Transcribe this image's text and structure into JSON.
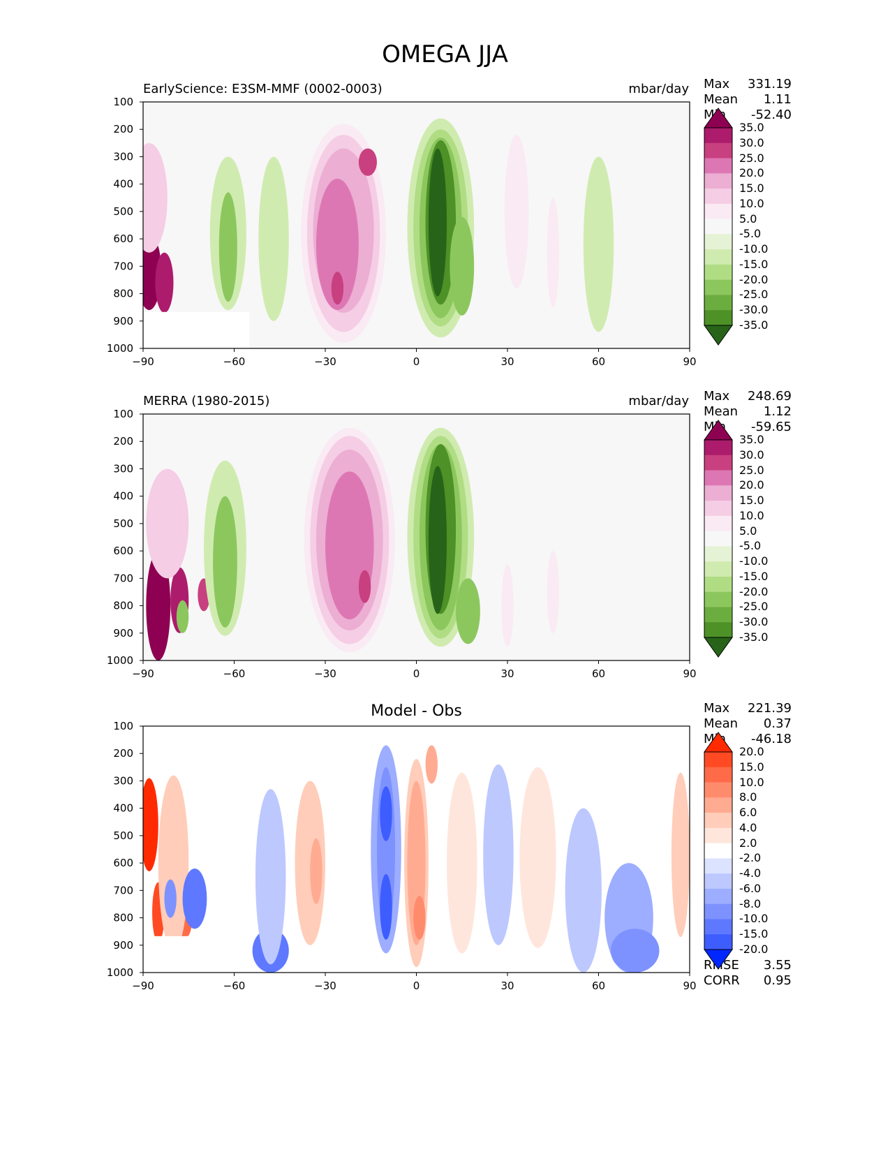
{
  "figure": {
    "title": "OMEGA JJA"
  },
  "chart_data": [
    {
      "type": "heatmap",
      "name": "test",
      "title_left": "EarlyScience: E3SM-MMF (0002-0003)",
      "title_right": "mbar/day",
      "xlim": [
        -90,
        90
      ],
      "ylim": [
        1000,
        100
      ],
      "x_ticks": [
        "−90",
        "−60",
        "−30",
        "0",
        "30",
        "60",
        "90"
      ],
      "y_ticks": [
        "100",
        "200",
        "300",
        "400",
        "500",
        "600",
        "700",
        "800",
        "900",
        "1000"
      ],
      "stats": {
        "max_label": "Max",
        "max": "331.19",
        "mean_label": "Mean",
        "mean": "1.11",
        "min_label": "Min",
        "min": "-52.40"
      },
      "colorbar": {
        "levels": [
          "35.0",
          "30.0",
          "25.0",
          "20.0",
          "15.0",
          "10.0",
          "5.0",
          "-5.0",
          "-10.0",
          "-15.0",
          "-20.0",
          "-25.0",
          "-30.0",
          "-35.0"
        ],
        "colors": [
          "#8e0152",
          "#ad1b6c",
          "#c8407f",
          "#dd77b3",
          "#ecaed3",
          "#f5cde5",
          "#faeaf3",
          "#f7f7f7",
          "#e6f2d5",
          "#d0ebb0",
          "#b0dd84",
          "#8cc75e",
          "#6cad40",
          "#4d9127",
          "#2f6e1c",
          "#276419"
        ]
      },
      "blobs": [
        {
          "lat": -88,
          "p": 720,
          "rx": 4,
          "ry": 140,
          "level": 35
        },
        {
          "lat": -83,
          "p": 760,
          "rx": 3,
          "ry": 110,
          "level": 30
        },
        {
          "lat": -88,
          "p": 450,
          "rx": 6,
          "ry": 200,
          "level": 10
        },
        {
          "lat": -62,
          "p": 580,
          "rx": 6,
          "ry": 280,
          "level": -5
        },
        {
          "lat": -62,
          "p": 630,
          "rx": 3,
          "ry": 200,
          "level": -15
        },
        {
          "lat": -47,
          "p": 600,
          "rx": 5,
          "ry": 300,
          "level": -5
        },
        {
          "lat": -24,
          "p": 580,
          "rx": 14,
          "ry": 400,
          "level": 5
        },
        {
          "lat": -24,
          "p": 580,
          "rx": 12,
          "ry": 360,
          "level": 10
        },
        {
          "lat": -24,
          "p": 570,
          "rx": 10,
          "ry": 300,
          "level": 15
        },
        {
          "lat": -26,
          "p": 620,
          "rx": 7,
          "ry": 240,
          "level": 20
        },
        {
          "lat": -16,
          "p": 320,
          "rx": 3,
          "ry": 50,
          "level": 25
        },
        {
          "lat": -26,
          "p": 780,
          "rx": 2,
          "ry": 60,
          "level": 25
        },
        {
          "lat": 8,
          "p": 560,
          "rx": 11,
          "ry": 400,
          "level": -5
        },
        {
          "lat": 8,
          "p": 560,
          "rx": 9,
          "ry": 360,
          "level": -10
        },
        {
          "lat": 8,
          "p": 560,
          "rx": 7,
          "ry": 330,
          "level": -15
        },
        {
          "lat": 8,
          "p": 540,
          "rx": 5,
          "ry": 300,
          "level": -25
        },
        {
          "lat": 7,
          "p": 540,
          "rx": 3,
          "ry": 270,
          "level": -35
        },
        {
          "lat": 15,
          "p": 700,
          "rx": 4,
          "ry": 180,
          "level": -15
        },
        {
          "lat": 33,
          "p": 500,
          "rx": 4,
          "ry": 280,
          "level": 5
        },
        {
          "lat": 45,
          "p": 650,
          "rx": 2,
          "ry": 200,
          "level": 5
        },
        {
          "lat": 60,
          "p": 620,
          "rx": 5,
          "ry": 320,
          "level": -5
        }
      ]
    },
    {
      "type": "heatmap",
      "name": "reference",
      "title_left": "MERRA (1980-2015)",
      "title_right": "mbar/day",
      "xlim": [
        -90,
        90
      ],
      "ylim": [
        1000,
        100
      ],
      "x_ticks": [
        "−90",
        "−60",
        "−30",
        "0",
        "30",
        "60",
        "90"
      ],
      "y_ticks": [
        "100",
        "200",
        "300",
        "400",
        "500",
        "600",
        "700",
        "800",
        "900",
        "1000"
      ],
      "stats": {
        "max_label": "Max",
        "max": "248.69",
        "mean_label": "Mean",
        "mean": "1.12",
        "min_label": "Min",
        "min": "-59.65"
      },
      "colorbar": {
        "levels": [
          "35.0",
          "30.0",
          "25.0",
          "20.0",
          "15.0",
          "10.0",
          "5.0",
          "-5.0",
          "-10.0",
          "-15.0",
          "-20.0",
          "-25.0",
          "-30.0",
          "-35.0"
        ],
        "colors": [
          "#8e0152",
          "#ad1b6c",
          "#c8407f",
          "#dd77b3",
          "#ecaed3",
          "#f5cde5",
          "#faeaf3",
          "#f7f7f7",
          "#e6f2d5",
          "#d0ebb0",
          "#b0dd84",
          "#8cc75e",
          "#6cad40",
          "#4d9127",
          "#2f6e1c",
          "#276419"
        ]
      },
      "blobs": [
        {
          "lat": -85,
          "p": 800,
          "rx": 4,
          "ry": 200,
          "level": 35
        },
        {
          "lat": -78,
          "p": 780,
          "rx": 3,
          "ry": 120,
          "level": 30
        },
        {
          "lat": -70,
          "p": 760,
          "rx": 2,
          "ry": 60,
          "level": 25
        },
        {
          "lat": -82,
          "p": 500,
          "rx": 7,
          "ry": 200,
          "level": 10
        },
        {
          "lat": -77,
          "p": 840,
          "rx": 2,
          "ry": 60,
          "level": -15
        },
        {
          "lat": -63,
          "p": 590,
          "rx": 7,
          "ry": 320,
          "level": -5
        },
        {
          "lat": -63,
          "p": 640,
          "rx": 4,
          "ry": 240,
          "level": -15
        },
        {
          "lat": -22,
          "p": 560,
          "rx": 15,
          "ry": 410,
          "level": 5
        },
        {
          "lat": -22,
          "p": 560,
          "rx": 13,
          "ry": 380,
          "level": 10
        },
        {
          "lat": -22,
          "p": 560,
          "rx": 11,
          "ry": 330,
          "level": 15
        },
        {
          "lat": -22,
          "p": 580,
          "rx": 8,
          "ry": 270,
          "level": 20
        },
        {
          "lat": -17,
          "p": 730,
          "rx": 2,
          "ry": 60,
          "level": 25
        },
        {
          "lat": 8,
          "p": 550,
          "rx": 11,
          "ry": 400,
          "level": -5
        },
        {
          "lat": 8,
          "p": 550,
          "rx": 9,
          "ry": 370,
          "level": -10
        },
        {
          "lat": 8,
          "p": 550,
          "rx": 7,
          "ry": 340,
          "level": -15
        },
        {
          "lat": 8,
          "p": 520,
          "rx": 5,
          "ry": 310,
          "level": -25
        },
        {
          "lat": 7,
          "p": 560,
          "rx": 3,
          "ry": 270,
          "level": -35
        },
        {
          "lat": 17,
          "p": 820,
          "rx": 4,
          "ry": 120,
          "level": -15
        },
        {
          "lat": 30,
          "p": 800,
          "rx": 2,
          "ry": 150,
          "level": 5
        },
        {
          "lat": 45,
          "p": 750,
          "rx": 2,
          "ry": 150,
          "level": 5
        }
      ]
    },
    {
      "type": "heatmap",
      "name": "diff",
      "title_center": "Model - Obs",
      "xlim": [
        -90,
        90
      ],
      "ylim": [
        1000,
        100
      ],
      "x_ticks": [
        "−90",
        "−60",
        "−30",
        "0",
        "30",
        "60",
        "90"
      ],
      "y_ticks": [
        "100",
        "200",
        "300",
        "400",
        "500",
        "600",
        "700",
        "800",
        "900",
        "1000"
      ],
      "stats": {
        "max_label": "Max",
        "max": "221.39",
        "mean_label": "Mean",
        "mean": "0.37",
        "min_label": "Min",
        "min": "-46.18"
      },
      "scores": {
        "rmse_label": "RMSE",
        "rmse": "3.55",
        "corr_label": "CORR",
        "corr": "0.95"
      },
      "colorbar": {
        "levels": [
          "20.0",
          "15.0",
          "10.0",
          "8.0",
          "6.0",
          "4.0",
          "2.0",
          "-2.0",
          "-4.0",
          "-6.0",
          "-8.0",
          "-10.0",
          "-15.0",
          "-20.0"
        ],
        "colors": [
          "#ff2a00",
          "#ff4a23",
          "#ff6b48",
          "#ff8b6d",
          "#ffab92",
          "#ffcdb9",
          "#ffe6dc",
          "#ffffff",
          "#dce3ff",
          "#bdc8ff",
          "#9dadff",
          "#7d92ff",
          "#5e78ff",
          "#3e5dff",
          "#1f42ff",
          "#0027ff"
        ]
      },
      "blobs": [
        {
          "lat": -88,
          "p": 460,
          "rx": 3,
          "ry": 170,
          "level": 20
        },
        {
          "lat": -85,
          "p": 780,
          "rx": 2,
          "ry": 110,
          "level": 15
        },
        {
          "lat": -77,
          "p": 820,
          "rx": 3,
          "ry": 60,
          "level": 10
        },
        {
          "lat": -80,
          "p": 600,
          "rx": 5,
          "ry": 320,
          "level": 4
        },
        {
          "lat": -73,
          "p": 730,
          "rx": 4,
          "ry": 110,
          "level": -8
        },
        {
          "lat": -81,
          "p": 730,
          "rx": 2,
          "ry": 70,
          "level": -6
        },
        {
          "lat": -48,
          "p": 920,
          "rx": 6,
          "ry": 80,
          "level": -8
        },
        {
          "lat": -48,
          "p": 650,
          "rx": 5,
          "ry": 320,
          "level": -2
        },
        {
          "lat": -35,
          "p": 600,
          "rx": 5,
          "ry": 300,
          "level": 4
        },
        {
          "lat": -33,
          "p": 630,
          "rx": 2,
          "ry": 120,
          "level": 6
        },
        {
          "lat": -10,
          "p": 550,
          "rx": 5,
          "ry": 380,
          "level": -4
        },
        {
          "lat": -10,
          "p": 550,
          "rx": 3,
          "ry": 300,
          "level": -6
        },
        {
          "lat": -10,
          "p": 420,
          "rx": 2,
          "ry": 100,
          "level": -10
        },
        {
          "lat": -10,
          "p": 760,
          "rx": 2,
          "ry": 120,
          "level": -10
        },
        {
          "lat": 0,
          "p": 600,
          "rx": 4,
          "ry": 380,
          "level": 4
        },
        {
          "lat": 0,
          "p": 600,
          "rx": 3,
          "ry": 300,
          "level": 6
        },
        {
          "lat": 1,
          "p": 800,
          "rx": 2,
          "ry": 80,
          "level": 8
        },
        {
          "lat": 5,
          "p": 240,
          "rx": 2,
          "ry": 70,
          "level": 6
        },
        {
          "lat": 15,
          "p": 600,
          "rx": 5,
          "ry": 330,
          "level": 2
        },
        {
          "lat": 27,
          "p": 570,
          "rx": 5,
          "ry": 330,
          "level": -2
        },
        {
          "lat": 40,
          "p": 580,
          "rx": 6,
          "ry": 330,
          "level": 2
        },
        {
          "lat": 55,
          "p": 700,
          "rx": 6,
          "ry": 300,
          "level": -2
        },
        {
          "lat": 70,
          "p": 800,
          "rx": 8,
          "ry": 200,
          "level": -4
        },
        {
          "lat": 72,
          "p": 920,
          "rx": 8,
          "ry": 80,
          "level": -6
        },
        {
          "lat": 87,
          "p": 570,
          "rx": 3,
          "ry": 300,
          "level": 4
        }
      ]
    }
  ]
}
